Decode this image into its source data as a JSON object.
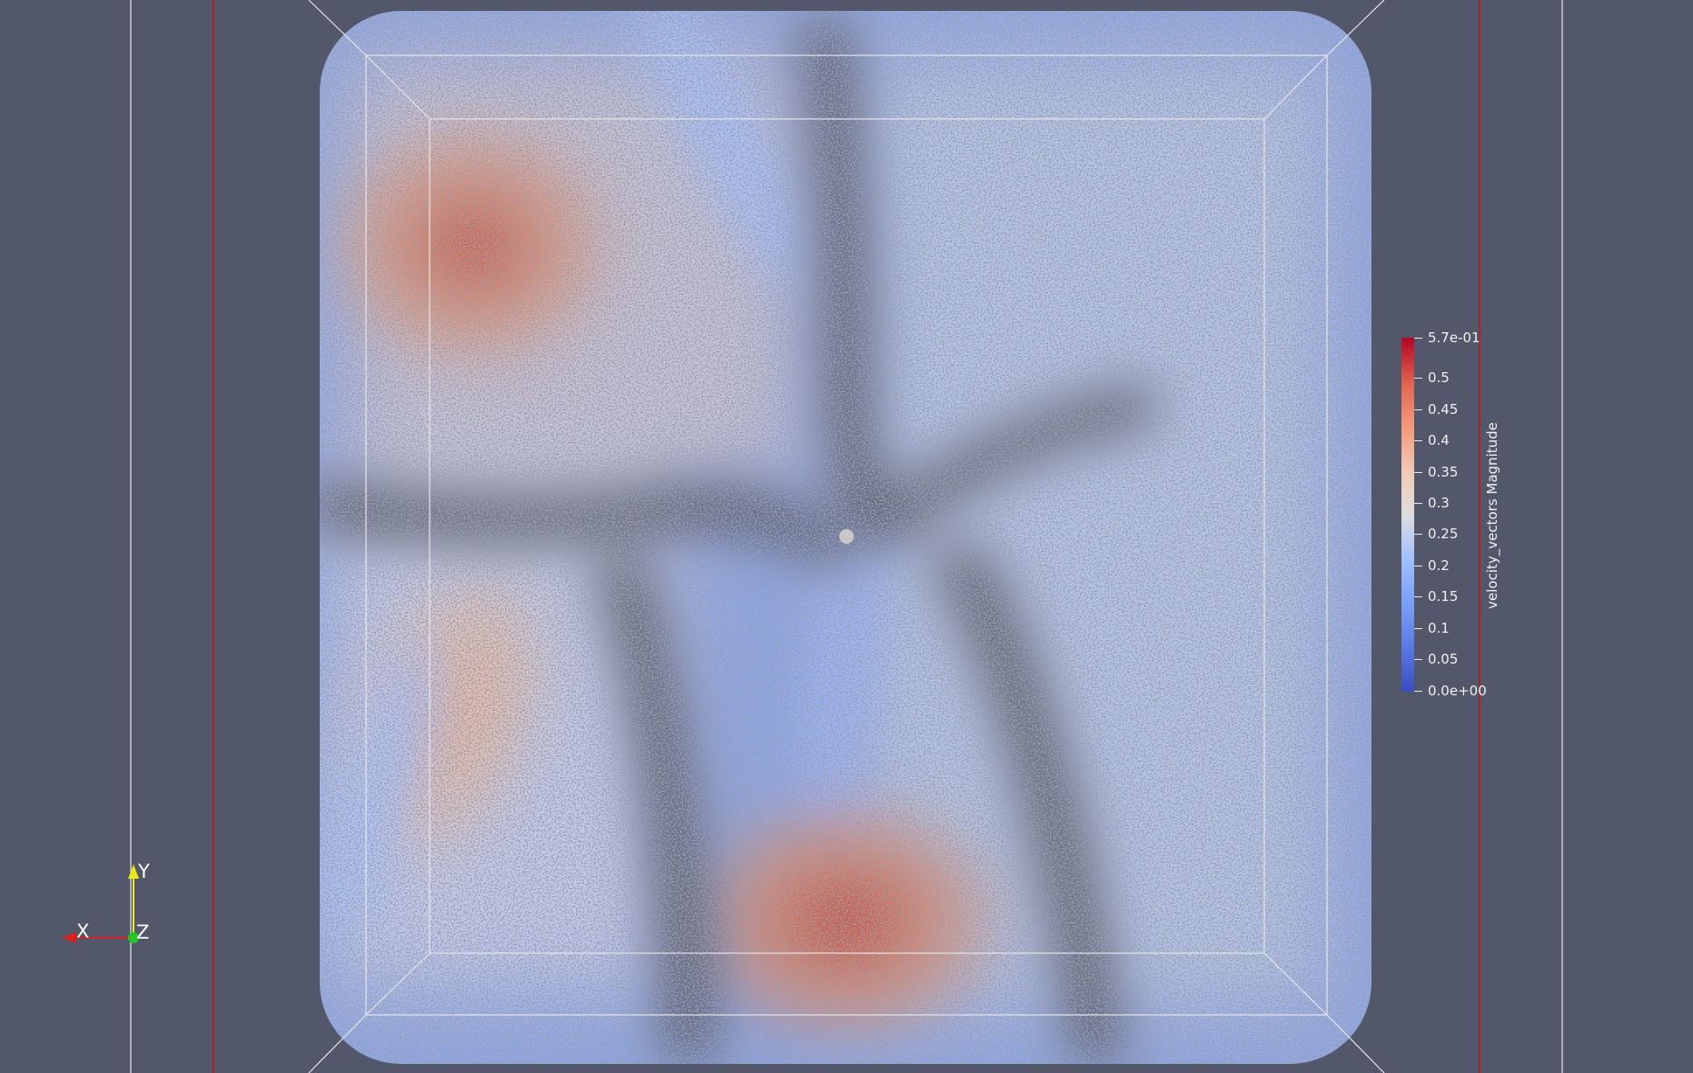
{
  "colors": {
    "background": "#525769",
    "outline": "#e6e6e6",
    "boundary_red": "#b41e26",
    "colormap_low": "#3b4cc0",
    "colormap_mid": "#dddddd",
    "colormap_high": "#b40426",
    "axis_x": "#dd1c1c",
    "axis_y": "#e8e81a",
    "axis_z": "#1ec81e",
    "center_marker": "#c8c8c8"
  },
  "colorbar": {
    "title": "velocity_vectors Magnitude",
    "max_label": "5.7e-01",
    "min_label": "0.0e+00",
    "tick_labels": [
      "0.5",
      "0.45",
      "0.4",
      "0.35",
      "0.3",
      "0.25",
      "0.2",
      "0.15",
      "0.1",
      "0.05"
    ],
    "range": [
      0,
      0.57
    ],
    "colormap": "Cool to Warm"
  },
  "orientation_axes": {
    "x_label": "X",
    "y_label": "Y",
    "z_label": "Z"
  },
  "icons": {
    "orientation": "orientation-axes-icon",
    "center": "center-of-rotation-icon"
  }
}
